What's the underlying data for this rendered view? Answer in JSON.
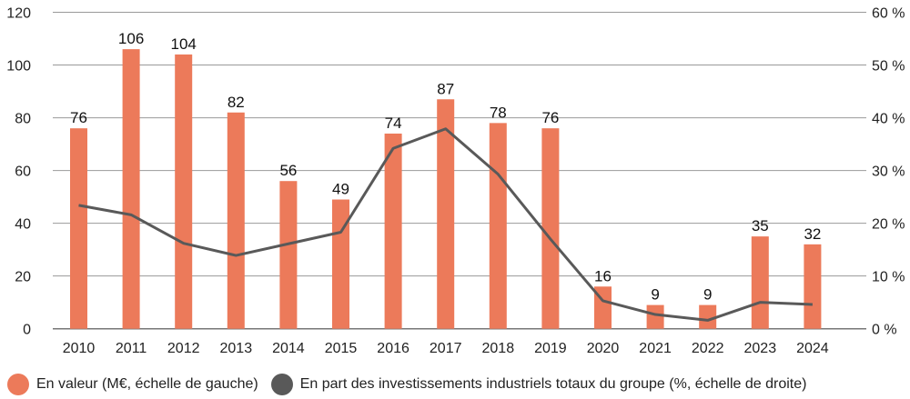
{
  "chart_data": {
    "type": "bar+line",
    "categories": [
      "2010",
      "2011",
      "2012",
      "2013",
      "2014",
      "2015",
      "2016",
      "2017",
      "2018",
      "2019",
      "2020",
      "2021",
      "2022",
      "2023",
      "2024"
    ],
    "series": [
      {
        "name": "En valeur (M€, échelle de gauche)",
        "type": "bar",
        "axis": "left",
        "color": "#ec7a5a",
        "values": [
          76,
          106,
          104,
          82,
          56,
          49,
          74,
          87,
          78,
          76,
          16,
          9,
          9,
          35,
          32
        ]
      },
      {
        "name": "En part des investissements industriels totaux du groupe (%, échelle de droite)",
        "type": "line",
        "axis": "right",
        "color": "#595959",
        "values": [
          23.4,
          21.6,
          16.2,
          13.9,
          16.1,
          18.3,
          34.2,
          37.9,
          29.3,
          17,
          5.3,
          2.7,
          1.6,
          5.0,
          4.6
        ]
      }
    ],
    "left_axis": {
      "range": [
        0,
        120
      ],
      "ticks": [
        "0",
        "20",
        "40",
        "60",
        "80",
        "100",
        "120"
      ]
    },
    "right_axis": {
      "range": [
        0,
        60
      ],
      "ticks": [
        "0 %",
        "10 %",
        "20 %",
        "30 %",
        "40 %",
        "50 %",
        "60 %"
      ]
    },
    "grid": true,
    "legend_position": "bottom"
  }
}
